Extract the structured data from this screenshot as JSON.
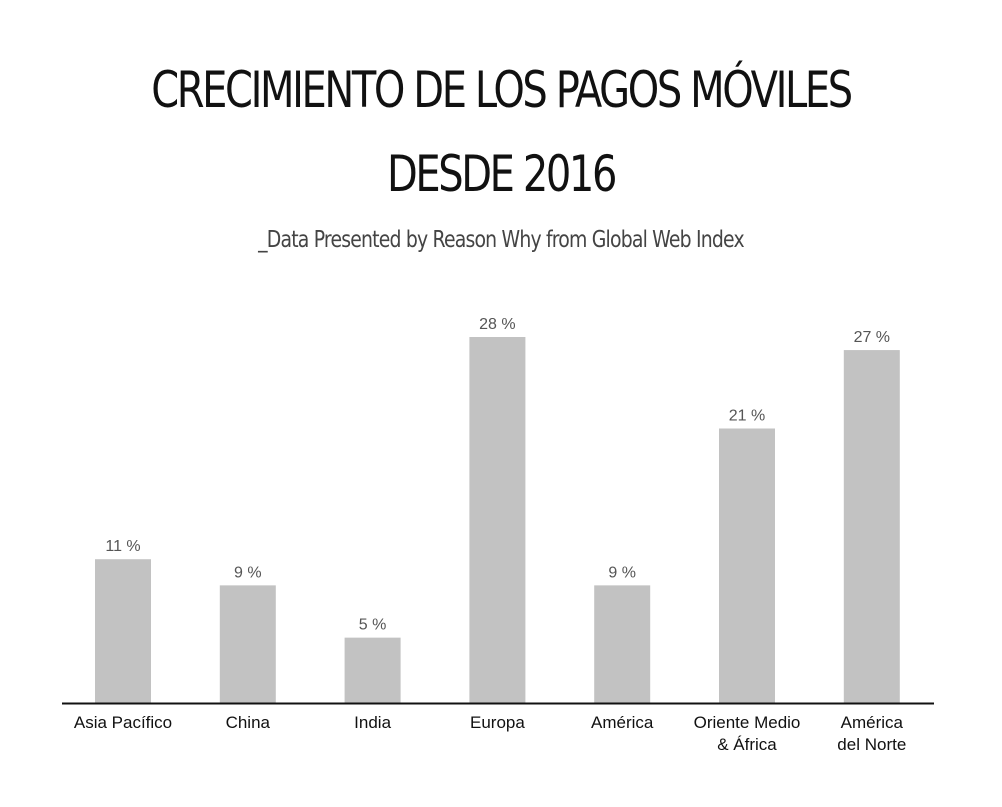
{
  "header": {
    "title_line1": "CRECIMIENTO DE LOS PAGOS MÓVILES",
    "title_line2": "DESDE 2016",
    "subtitle": "_Data Presented by Reason Why from Global Web Index"
  },
  "chart_data": {
    "type": "bar",
    "title": "CRECIMIENTO DE LOS PAGOS MÓVILES DESDE 2016",
    "subtitle": "_Data Presented by Reason Why from Global Web Index",
    "categories": [
      [
        "Asia Pacífico"
      ],
      [
        "China"
      ],
      [
        "India"
      ],
      [
        "Europa"
      ],
      [
        "América"
      ],
      [
        "Oriente Medio",
        "& África"
      ],
      [
        "América",
        "del Norte"
      ]
    ],
    "values": [
      11,
      9,
      5,
      28,
      9,
      21,
      27
    ],
    "value_labels": [
      "11 %",
      "9 %",
      "5 %",
      "28 %",
      "9 %",
      "21 %",
      "27 %"
    ],
    "bar_color": "#c2c2c2",
    "axis_color": "#111111",
    "ylim": [
      0,
      28
    ],
    "grid": false,
    "legend": false
  }
}
